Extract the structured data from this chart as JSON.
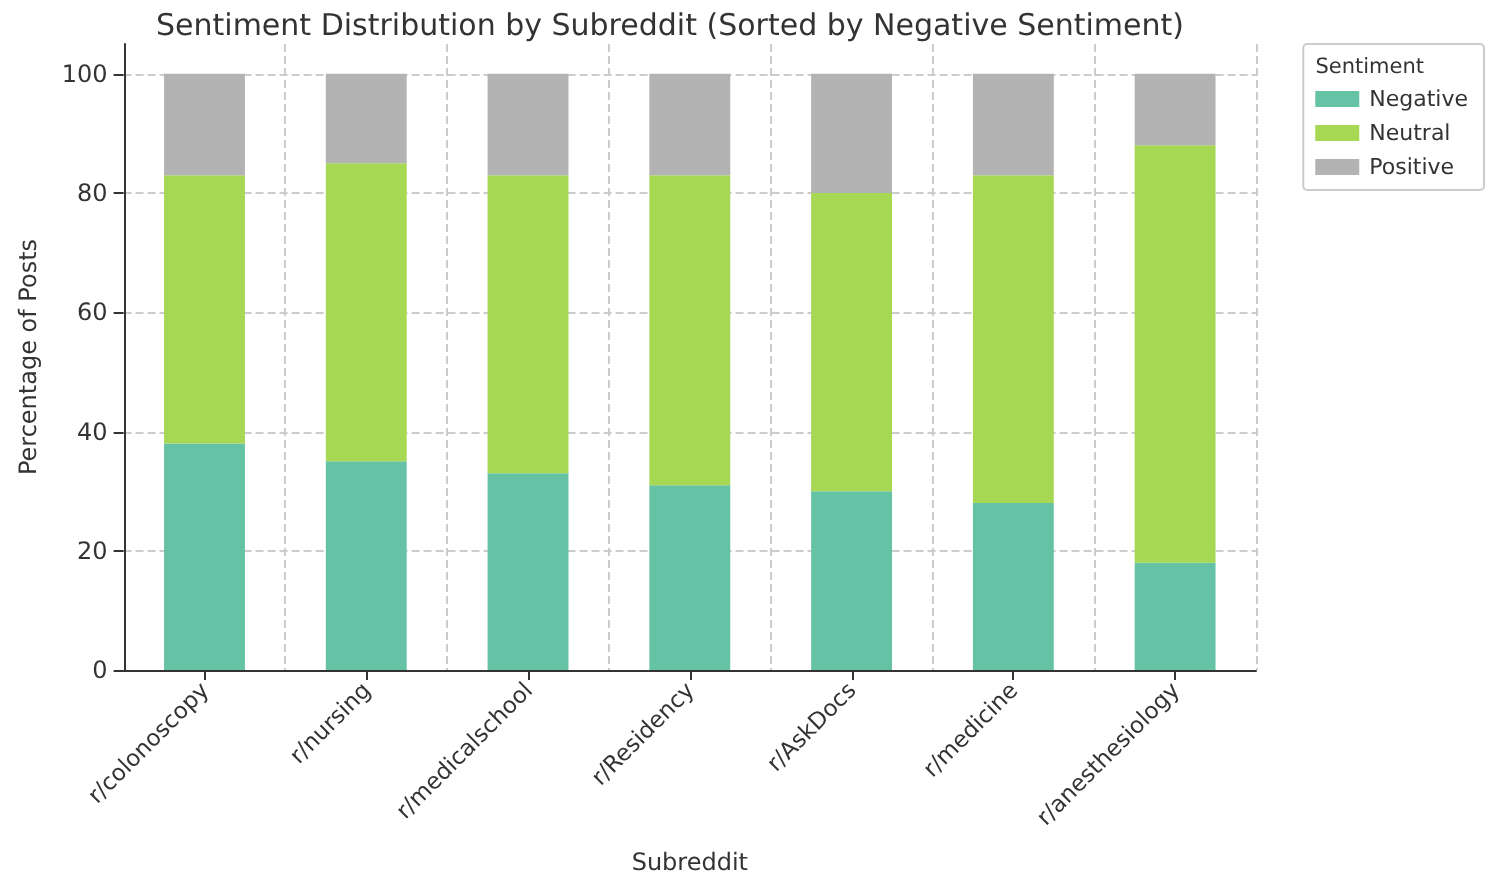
{
  "chart_data": {
    "type": "bar",
    "title": "Sentiment Distribution by Subreddit (Sorted by Negative Sentiment)",
    "xlabel": "Subreddit",
    "ylabel": "Percentage of Posts",
    "legend_title": "Sentiment",
    "categories": [
      "r/colonoscopy",
      "r/nursing",
      "r/medicalschool",
      "r/Residency",
      "r/AskDocs",
      "r/medicine",
      "r/anesthesiology"
    ],
    "series": [
      {
        "name": "Negative",
        "color": "#66c2a5",
        "values": [
          38,
          35,
          33,
          31,
          30,
          28,
          18
        ]
      },
      {
        "name": "Neutral",
        "color": "#a6d854",
        "values": [
          45,
          50,
          50,
          52,
          50,
          55,
          70
        ]
      },
      {
        "name": "Positive",
        "color": "#b3b3b3",
        "values": [
          17,
          15,
          17,
          17,
          20,
          17,
          12
        ]
      }
    ],
    "stacked": true,
    "ylim": [
      0,
      105
    ],
    "yticks": [
      0,
      20,
      40,
      60,
      80,
      100
    ],
    "grid": true,
    "legend": "top right"
  }
}
